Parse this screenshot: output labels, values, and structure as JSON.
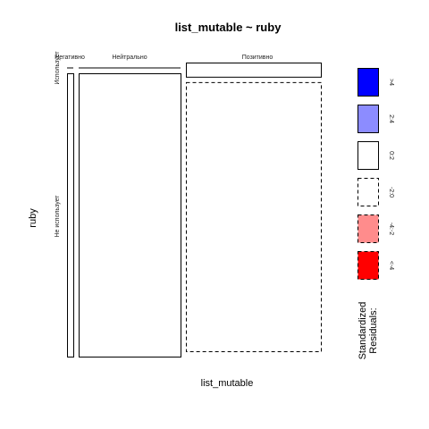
{
  "chart_data": {
    "type": "mosaic",
    "title": "list_mutable ~ ruby",
    "xlabel": "list_mutable",
    "ylabel": "ruby",
    "x_levels": [
      "Негативно",
      "Нейтрально",
      "Позитивно"
    ],
    "y_levels": [
      "Использует",
      "Не использует"
    ],
    "cells": [
      {
        "x": "Негативно",
        "y": "Использует",
        "proportion_x": 0.03,
        "proportion_y_in_col": 0.0,
        "residual_band": "0:2"
      },
      {
        "x": "Негативно",
        "y": "Не использует",
        "proportion_x": 0.03,
        "proportion_y_in_col": 1.0,
        "residual_band": "0:2"
      },
      {
        "x": "Нейтрально",
        "y": "Использует",
        "proportion_x": 0.41,
        "proportion_y_in_col": 0.0,
        "residual_band": "0:2"
      },
      {
        "x": "Нейтрально",
        "y": "Не использует",
        "proportion_x": 0.41,
        "proportion_y_in_col": 1.0,
        "residual_band": "0:2"
      },
      {
        "x": "Позитивно",
        "y": "Использует",
        "proportion_x": 0.56,
        "proportion_y_in_col": 0.05,
        "residual_band": "0:2"
      },
      {
        "x": "Позитивно",
        "y": "Не использует",
        "proportion_x": 0.56,
        "proportion_y_in_col": 0.95,
        "residual_band": "-2:0"
      }
    ],
    "legend": {
      "title": "Standardized\nResiduals:",
      "entries": [
        {
          "label": ">4",
          "fill": "#0000ff",
          "dashed": false
        },
        {
          "label": "2:4",
          "fill": "#8c8cff",
          "dashed": false
        },
        {
          "label": "0:2",
          "fill": "#ffffff",
          "dashed": false
        },
        {
          "label": "-2:0",
          "fill": "#ffffff",
          "dashed": true
        },
        {
          "label": "-4:-2",
          "fill": "#ff8c8c",
          "dashed": true
        },
        {
          "label": "<-4",
          "fill": "#ff0000",
          "dashed": true
        }
      ]
    }
  }
}
